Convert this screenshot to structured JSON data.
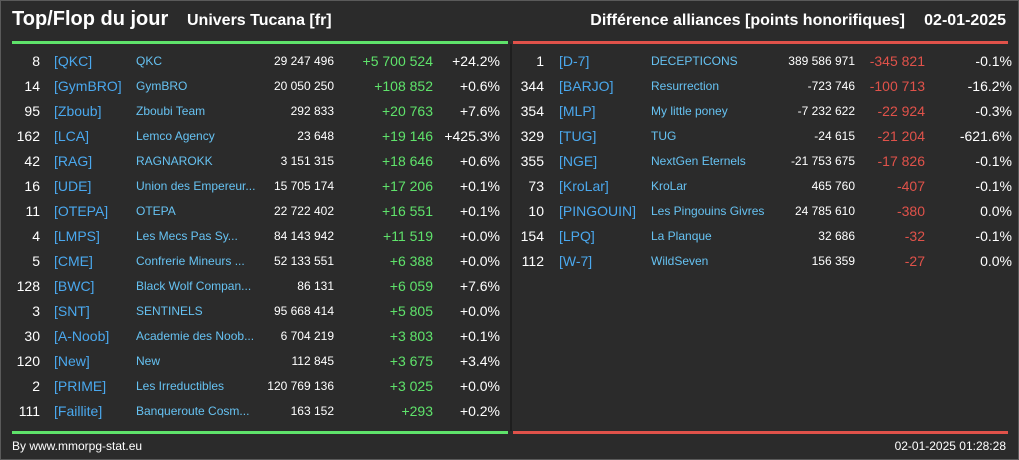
{
  "header": {
    "title": "Top/Flop du jour",
    "server": "Univers Tucana [fr]",
    "description": "Différence alliances [points honorifiques]",
    "date": "02-01-2025"
  },
  "colors": {
    "positive": "#5fe36b",
    "negative": "#e0524a",
    "tag": "#4aa8ee",
    "name": "#66c2f2",
    "background": "#2b2b2b"
  },
  "top": [
    {
      "rank": "8",
      "tag": "[QKC]",
      "name": "QKC",
      "points": "29 247 496",
      "diff": "+5 700 524",
      "pct": "+24.2%"
    },
    {
      "rank": "14",
      "tag": "[GymBRO]",
      "name": "GymBRO",
      "points": "20 050 250",
      "diff": "+108 852",
      "pct": "+0.6%"
    },
    {
      "rank": "95",
      "tag": "[Zboub]",
      "name": "Zboubi Team",
      "points": "292 833",
      "diff": "+20 763",
      "pct": "+7.6%"
    },
    {
      "rank": "162",
      "tag": "[LCA]",
      "name": "Lemco Agency",
      "points": "23 648",
      "diff": "+19 146",
      "pct": "+425.3%"
    },
    {
      "rank": "42",
      "tag": "[RAG]",
      "name": "RAGNAROKK",
      "points": "3 151 315",
      "diff": "+18 646",
      "pct": "+0.6%"
    },
    {
      "rank": "16",
      "tag": "[UDE]",
      "name": "Union des Empereur...",
      "points": "15 705 174",
      "diff": "+17 206",
      "pct": "+0.1%"
    },
    {
      "rank": "11",
      "tag": "[OTEPA]",
      "name": "OTEPA",
      "points": "22 722 402",
      "diff": "+16 551",
      "pct": "+0.1%"
    },
    {
      "rank": "4",
      "tag": "[LMPS]",
      "name": "Les Mecs Pas Sy...",
      "points": "84 143 942",
      "diff": "+11 519",
      "pct": "+0.0%"
    },
    {
      "rank": "5",
      "tag": "[CME]",
      "name": "Confrerie Mineurs ...",
      "points": "52 133 551",
      "diff": "+6 388",
      "pct": "+0.0%"
    },
    {
      "rank": "128",
      "tag": "[BWC]",
      "name": "Black Wolf Compan...",
      "points": "86 131",
      "diff": "+6 059",
      "pct": "+7.6%"
    },
    {
      "rank": "3",
      "tag": "[SNT]",
      "name": "SENTINELS",
      "points": "95 668 414",
      "diff": "+5 805",
      "pct": "+0.0%"
    },
    {
      "rank": "30",
      "tag": "[A-Noob]",
      "name": "Academie des Noob...",
      "points": "6 704 219",
      "diff": "+3 803",
      "pct": "+0.1%"
    },
    {
      "rank": "120",
      "tag": "[New]",
      "name": "New",
      "points": "112 845",
      "diff": "+3 675",
      "pct": "+3.4%"
    },
    {
      "rank": "2",
      "tag": "[PRIME]",
      "name": "Les Irreductibles",
      "points": "120 769 136",
      "diff": "+3 025",
      "pct": "+0.0%"
    },
    {
      "rank": "111",
      "tag": "[Faillite]",
      "name": "Banqueroute Cosm...",
      "points": "163 152",
      "diff": "+293",
      "pct": "+0.2%"
    }
  ],
  "flop": [
    {
      "rank": "1",
      "tag": "[D-7]",
      "name": "DECEPTICONS",
      "points": "389 586 971",
      "diff": "-345 821",
      "pct": "-0.1%"
    },
    {
      "rank": "344",
      "tag": "[BARJO]",
      "name": "Resurrection",
      "points": "-723 746",
      "diff": "-100 713",
      "pct": "-16.2%"
    },
    {
      "rank": "354",
      "tag": "[MLP]",
      "name": "My little poney",
      "points": "-7 232 622",
      "diff": "-22 924",
      "pct": "-0.3%"
    },
    {
      "rank": "329",
      "tag": "[TUG]",
      "name": "TUG",
      "points": "-24 615",
      "diff": "-21 204",
      "pct": "-621.6%"
    },
    {
      "rank": "355",
      "tag": "[NGE]",
      "name": "NextGen Eternels",
      "points": "-21 753 675",
      "diff": "-17 826",
      "pct": "-0.1%"
    },
    {
      "rank": "73",
      "tag": "[KroLar]",
      "name": "KroLar",
      "points": "465 760",
      "diff": "-407",
      "pct": "-0.1%"
    },
    {
      "rank": "10",
      "tag": "[PINGOUIN]",
      "name": "Les Pingouins Givres",
      "points": "24 785 610",
      "diff": "-380",
      "pct": "0.0%"
    },
    {
      "rank": "154",
      "tag": "[LPQ]",
      "name": "La Planque",
      "points": "32 686",
      "diff": "-32",
      "pct": "-0.1%"
    },
    {
      "rank": "112",
      "tag": "[W-7]",
      "name": "WildSeven",
      "points": "156 359",
      "diff": "-27",
      "pct": "0.0%"
    }
  ],
  "footer": {
    "source": "By www.mmorpg-stat.eu",
    "timestamp": "02-01-2025 01:28:28"
  }
}
